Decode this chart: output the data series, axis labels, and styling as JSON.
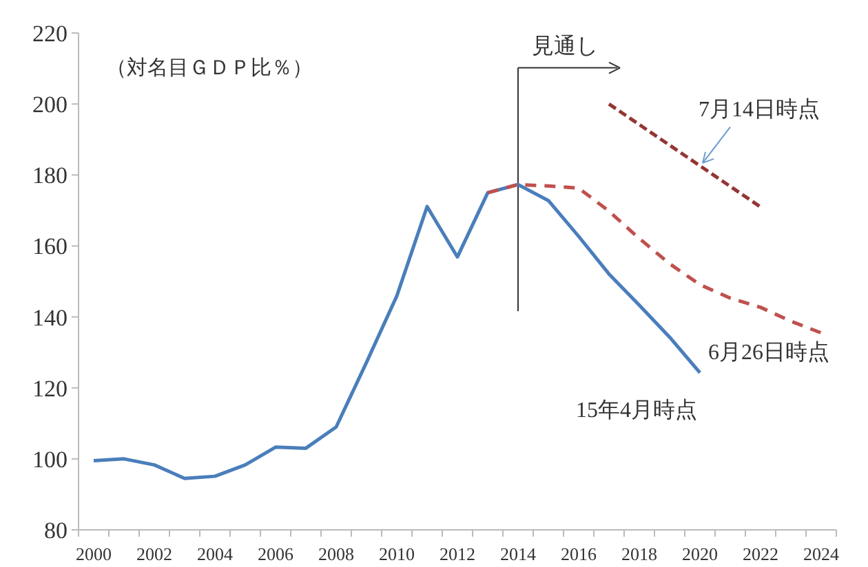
{
  "chart_data": {
    "type": "line",
    "annotations": [
      "（対名目ＧＤＰ比％）"
    ],
    "categories": [
      "2000",
      null,
      "2002",
      null,
      "2004",
      null,
      "2006",
      null,
      "2008",
      null,
      "2010",
      null,
      "2012",
      null,
      "2014",
      null,
      "2016",
      null,
      "2018",
      null,
      "2020",
      null,
      "2022",
      null,
      "2024"
    ],
    "series": [
      {
        "name": "15年4月時点",
        "color": "#4a7ebb",
        "line_style": "solid",
        "values": [
          99.5,
          100,
          98.3,
          94.5,
          95.1,
          98.3,
          103.3,
          103,
          109,
          127.2,
          145.9,
          171.1,
          156.9,
          175,
          177.3,
          172.8,
          162.7,
          152.1,
          143.3,
          134.3,
          124.3,
          null,
          null,
          null,
          null
        ]
      },
      {
        "name": "6月26日時点",
        "color": "#c0504d",
        "line_style": "dashed",
        "values": [
          null,
          null,
          null,
          null,
          null,
          null,
          null,
          null,
          null,
          null,
          null,
          null,
          null,
          175,
          177.3,
          176.9,
          176.3,
          169.8,
          162.1,
          155,
          149.1,
          145.3,
          142.7,
          138.8,
          135.5
        ]
      },
      {
        "name": "7月14日時点",
        "color": "#943634",
        "line_style": "dashed",
        "values": [
          null,
          null,
          null,
          null,
          null,
          null,
          null,
          null,
          null,
          null,
          null,
          null,
          null,
          null,
          null,
          null,
          null,
          200,
          194.2,
          188.4,
          182.6,
          176.8,
          171,
          null,
          null
        ]
      }
    ],
    "ref_lines": [
      {
        "axis": "x",
        "value": "2014",
        "label": "見通し"
      }
    ],
    "ylim": [
      80,
      220
    ],
    "yticks": [
      80,
      100,
      120,
      140,
      160,
      180,
      200,
      220
    ],
    "grid": false,
    "legend": false,
    "marker": "none"
  }
}
